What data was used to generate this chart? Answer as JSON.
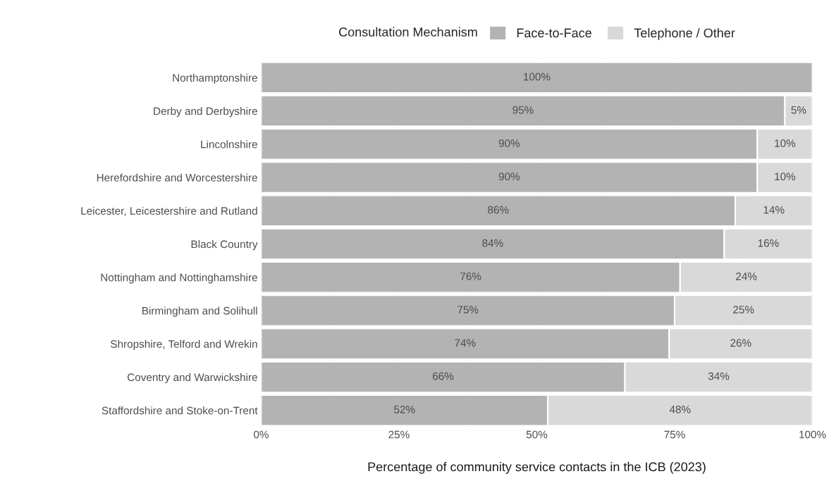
{
  "chart_data": {
    "type": "bar",
    "orientation": "horizontal",
    "stacked": true,
    "xlabel": "Percentage of community service contacts in the ICB (2023)",
    "legend_title": "Consultation Mechanism",
    "legend": "top",
    "categories": [
      "Northamptonshire",
      "Derby and Derbyshire",
      "Lincolnshire",
      "Herefordshire and Worcestershire",
      "Leicester, Leicestershire and Rutland",
      "Black Country",
      "Nottingham and Nottinghamshire",
      "Birmingham and Solihull",
      "Shropshire, Telford and Wrekin",
      "Coventry and Warwickshire",
      "Staffordshire and Stoke-on-Trent"
    ],
    "series": [
      {
        "name": "Face-to-Face",
        "color": "#b3b3b3",
        "values": [
          100,
          95,
          90,
          90,
          86,
          84,
          76,
          75,
          74,
          66,
          52
        ],
        "value_labels": [
          "100%",
          "95%",
          "90%",
          "90%",
          "86%",
          "84%",
          "76%",
          "75%",
          "74%",
          "66%",
          "52%"
        ]
      },
      {
        "name": "Telephone / Other",
        "color": "#d9d9d9",
        "values": [
          null,
          5,
          10,
          10,
          14,
          16,
          24,
          25,
          26,
          34,
          48
        ],
        "value_labels": [
          null,
          "5%",
          "10%",
          "10%",
          "14%",
          "16%",
          "24%",
          "25%",
          "26%",
          "34%",
          "48%"
        ]
      }
    ],
    "xlim": [
      0,
      100
    ],
    "xticks": [
      {
        "value": 0,
        "label": "0%"
      },
      {
        "value": 12.5,
        "label": null
      },
      {
        "value": 25,
        "label": "25%"
      },
      {
        "value": 37.5,
        "label": null
      },
      {
        "value": 50,
        "label": "50%"
      },
      {
        "value": 62.5,
        "label": null
      },
      {
        "value": 75,
        "label": "75%"
      },
      {
        "value": 87.5,
        "label": null
      },
      {
        "value": 100,
        "label": "100%"
      }
    ],
    "grid": "x"
  }
}
